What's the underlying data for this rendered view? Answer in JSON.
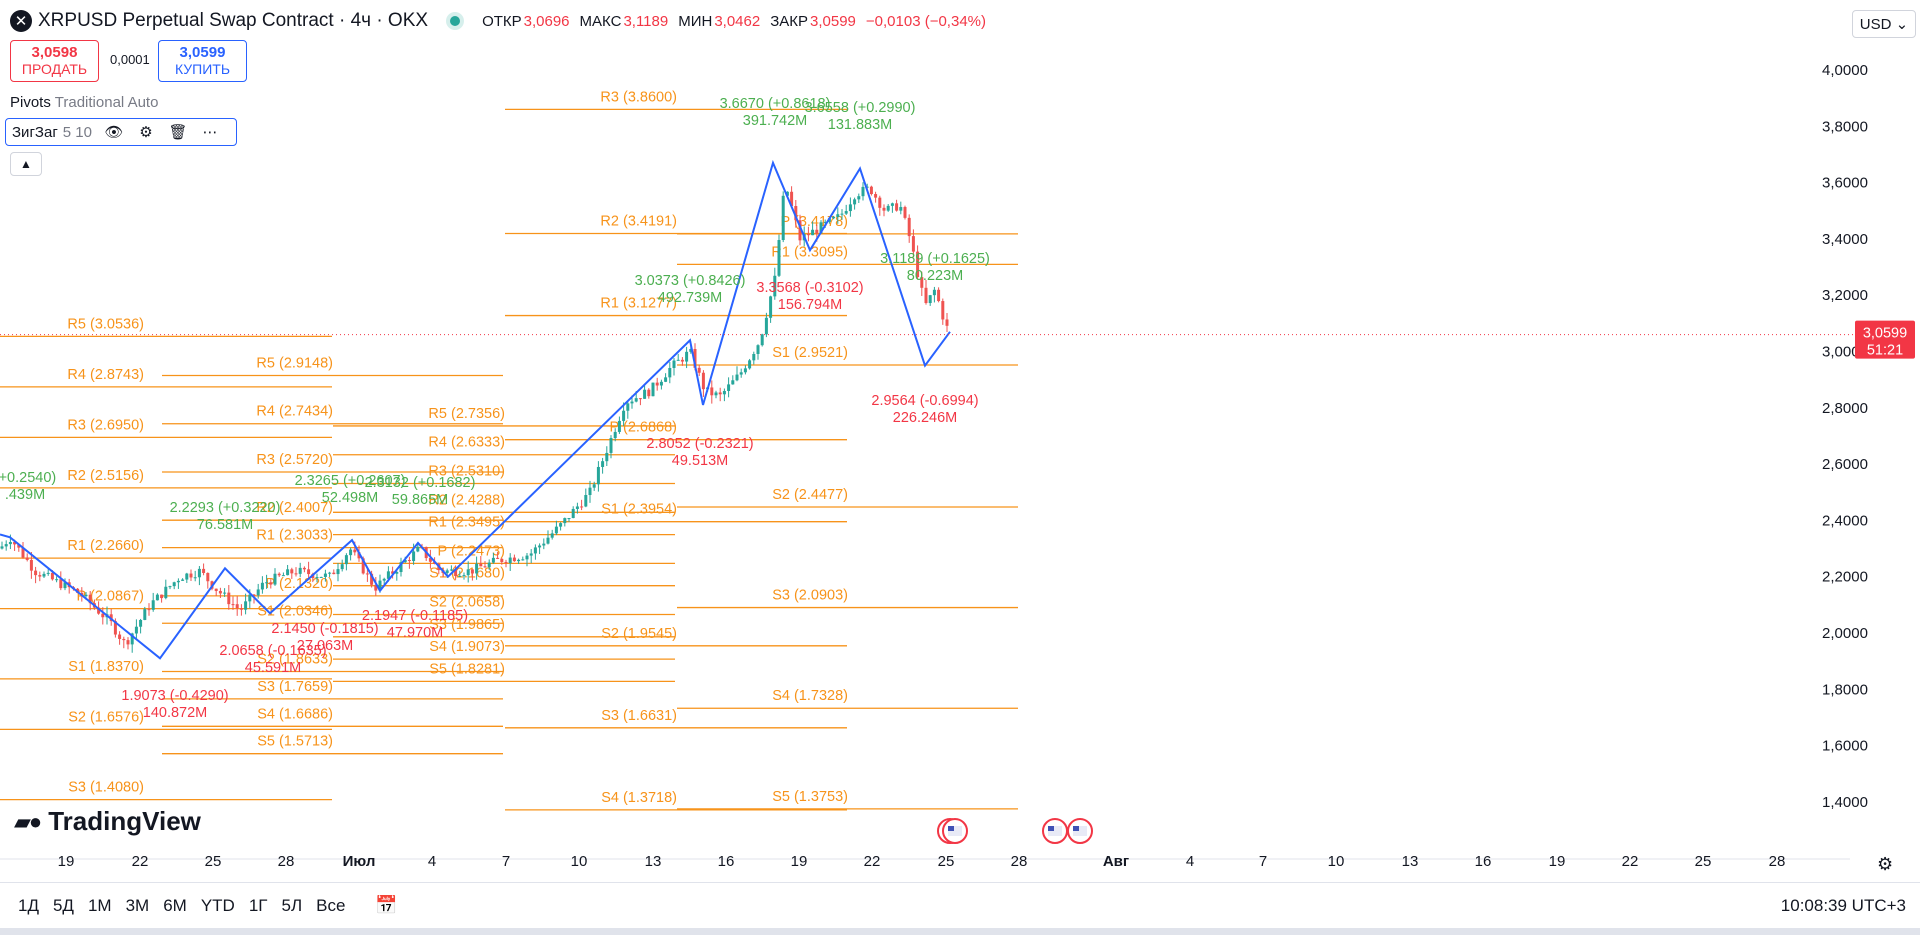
{
  "header": {
    "title": "XRPUSD Perpetual Swap Contract · 4ч · OKX",
    "open_label": "ОТКР",
    "open": "3,0696",
    "high_label": "МАКС",
    "high": "3,1189",
    "low_label": "МИН",
    "low": "3,0462",
    "close_label": "ЗАКР",
    "close": "3,0599",
    "change": "−0,0103 (−0,34%)"
  },
  "trade": {
    "sell_price": "3,0598",
    "sell_label": "ПРОДАТЬ",
    "spread": "0,0001",
    "buy_price": "3,0599",
    "buy_label": "КУПИТЬ"
  },
  "indicators": {
    "pivots_name": "Pivots",
    "pivots_params": "Traditional Auto",
    "zigzag_name": "ЗигЗаг",
    "zigzag_params": "5 10"
  },
  "currency": "USD",
  "brand": "TradingView",
  "ranges": [
    "1Д",
    "5Д",
    "1М",
    "3М",
    "6М",
    "YTD",
    "1Г",
    "5Л",
    "Все"
  ],
  "clock": "10:08:39 UTC+3",
  "chart_data": {
    "type": "candlestick",
    "symbol": "XRPUSD",
    "interval": "4h",
    "y_axis": {
      "range": [
        1.27,
        4.1
      ],
      "ticks": [
        "4,0000",
        "3,8000",
        "3,6000",
        "3,4000",
        "3,2000",
        "3,0000",
        "2,8000",
        "2,6000",
        "2,4000",
        "2,2000",
        "2,0000",
        "1,8000",
        "1,6000",
        "1,4000"
      ]
    },
    "x_axis": {
      "ticks": [
        "19",
        "22",
        "25",
        "28",
        "Июл",
        "4",
        "7",
        "10",
        "13",
        "16",
        "19",
        "22",
        "25",
        "28",
        "Авг",
        "4",
        "7",
        "10",
        "13",
        "16",
        "19",
        "22",
        "25",
        "28"
      ]
    },
    "last_price": {
      "value": "3,0599",
      "countdown": "51:21"
    },
    "price_path": [
      [
        0,
        2.3
      ],
      [
        10,
        2.34
      ],
      [
        35,
        2.22
      ],
      [
        80,
        2.14
      ],
      [
        110,
        2.04
      ],
      [
        125,
        1.96
      ],
      [
        150,
        2.1
      ],
      [
        180,
        2.2
      ],
      [
        200,
        2.22
      ],
      [
        215,
        2.16
      ],
      [
        240,
        2.08
      ],
      [
        265,
        2.18
      ],
      [
        295,
        2.22
      ],
      [
        330,
        2.2
      ],
      [
        350,
        2.3
      ],
      [
        375,
        2.16
      ],
      [
        400,
        2.24
      ],
      [
        420,
        2.3
      ],
      [
        440,
        2.22
      ],
      [
        470,
        2.22
      ],
      [
        500,
        2.26
      ],
      [
        530,
        2.28
      ],
      [
        560,
        2.38
      ],
      [
        590,
        2.5
      ],
      [
        610,
        2.68
      ],
      [
        625,
        2.82
      ],
      [
        650,
        2.86
      ],
      [
        670,
        2.94
      ],
      [
        690,
        3.0
      ],
      [
        705,
        2.86
      ],
      [
        720,
        2.84
      ],
      [
        740,
        2.92
      ],
      [
        760,
        3.04
      ],
      [
        775,
        3.26
      ],
      [
        785,
        3.6
      ],
      [
        800,
        3.4
      ],
      [
        820,
        3.44
      ],
      [
        840,
        3.48
      ],
      [
        855,
        3.56
      ],
      [
        870,
        3.58
      ],
      [
        885,
        3.5
      ],
      [
        900,
        3.52
      ],
      [
        910,
        3.4
      ],
      [
        925,
        3.16
      ],
      [
        935,
        3.22
      ],
      [
        945,
        3.1
      ],
      [
        950,
        3.06
      ]
    ],
    "zigzag": [
      [
        0,
        2.35
      ],
      [
        10,
        2.34
      ],
      [
        160,
        1.91
      ],
      [
        225,
        2.23
      ],
      [
        270,
        2.07
      ],
      [
        352,
        2.33
      ],
      [
        380,
        2.15
      ],
      [
        418,
        2.32
      ],
      [
        448,
        2.2
      ],
      [
        690,
        3.04
      ],
      [
        703,
        2.81
      ],
      [
        773,
        3.67
      ],
      [
        810,
        3.36
      ],
      [
        860,
        3.65
      ],
      [
        925,
        2.95
      ],
      [
        950,
        3.07
      ]
    ],
    "zigzag_labels": [
      {
        "price": "1.9073 (-0.4290)",
        "vol": "140.872M",
        "color": "red"
      },
      {
        "price": "2.2293 (+0.3220)",
        "vol": "76.581M",
        "color": "green"
      },
      {
        "price": "2.0658 (-0.1635)",
        "vol": "45.591M",
        "color": "red"
      },
      {
        "price": "2.3265 (+0.2607)",
        "vol": "52.498M",
        "color": "green"
      },
      {
        "price": "2.1450 (-0.1815)",
        "vol": "27.063M",
        "color": "red"
      },
      {
        "price": "2.3132 (+0.1682)",
        "vol": "59.865M",
        "color": "green"
      },
      {
        "price": "2.1947 (-0.1185)",
        "vol": "47.970M",
        "color": "red"
      },
      {
        "price": "3.0373 (+0.8426)",
        "vol": "492.739M",
        "color": "green"
      },
      {
        "price": "2.8052 (-0.2321)",
        "vol": "49.513M",
        "color": "red"
      },
      {
        "price": "3.6670 (+0.8618)",
        "vol": "391.742M",
        "color": "green"
      },
      {
        "price": "3.3568 (-0.3102)",
        "vol": "156.794M",
        "color": "red"
      },
      {
        "price": "3.6558 (+0.2990)",
        "vol": "131.883M",
        "color": "green"
      },
      {
        "price": "2.9564 (-0.6994)",
        "vol": "226.246M",
        "color": "red"
      },
      {
        "price": "3.1189 (+0.1625)",
        "vol": "80.223M",
        "color": "green"
      },
      {
        "price": "(+0.2540)",
        "vol": ".439M",
        "color": "green"
      }
    ],
    "pivots": [
      {
        "x0": -50,
        "x1": 162,
        "levels": [
          [
            "R5",
            "3.0536"
          ],
          [
            "R4",
            "2.8743"
          ],
          [
            "R3",
            "2.6950"
          ],
          [
            "R2",
            "2.5156"
          ],
          [
            "R1",
            "2.2660"
          ],
          [
            "P",
            "2.0867"
          ],
          [
            "S1",
            "1.8370"
          ],
          [
            "S2",
            "1.6576"
          ],
          [
            "S3",
            "1.4080"
          ]
        ]
      },
      {
        "x0": 162,
        "x1": 333,
        "levels": [
          [
            "R5",
            "2.9148"
          ],
          [
            "R4",
            "2.7434"
          ],
          [
            "R3",
            "2.5720"
          ],
          [
            "R2",
            "2.4007"
          ],
          [
            "R1",
            "2.3033"
          ],
          [
            "P",
            "2.1320"
          ],
          [
            "S1",
            "2.0346"
          ],
          [
            "S2",
            "1.8633"
          ],
          [
            "S3",
            "1.7659"
          ],
          [
            "S4",
            "1.6686"
          ],
          [
            "S5",
            "1.5713"
          ]
        ]
      },
      {
        "x0": 333,
        "x1": 505,
        "levels": [
          [
            "R5",
            "2.7356"
          ],
          [
            "R4",
            "2.6333"
          ],
          [
            "R3",
            "2.5310"
          ],
          [
            "R2",
            "2.4288"
          ],
          [
            "R1",
            "2.3495"
          ],
          [
            "P",
            "2.2473"
          ],
          [
            "S1",
            "2.1680"
          ],
          [
            "S2",
            "2.0658"
          ],
          [
            "S3",
            "1.9865"
          ],
          [
            "S4",
            "1.9073"
          ],
          [
            "S5",
            "1.8281"
          ]
        ]
      },
      {
        "x0": 505,
        "x1": 677,
        "levels": [
          [
            "R3",
            "3.8600"
          ],
          [
            "R2",
            "3.4191"
          ],
          [
            "R1",
            "3.1277"
          ],
          [
            "P",
            "2.6868"
          ],
          [
            "S1",
            "2.3954"
          ],
          [
            "S2",
            "1.9545"
          ],
          [
            "S3",
            "1.6631"
          ],
          [
            "S4",
            "1.3718"
          ]
        ]
      },
      {
        "x0": 677,
        "x1": 848,
        "levels": [
          [
            "R1",
            "3.3095"
          ],
          [
            "P",
            "3.4178"
          ],
          [
            "S1",
            "2.9521"
          ],
          [
            "S2",
            "2.4477"
          ],
          [
            "S3",
            "2.0903"
          ],
          [
            "S4",
            "1.7328"
          ],
          [
            "S5",
            "1.3753"
          ]
        ]
      }
    ]
  }
}
